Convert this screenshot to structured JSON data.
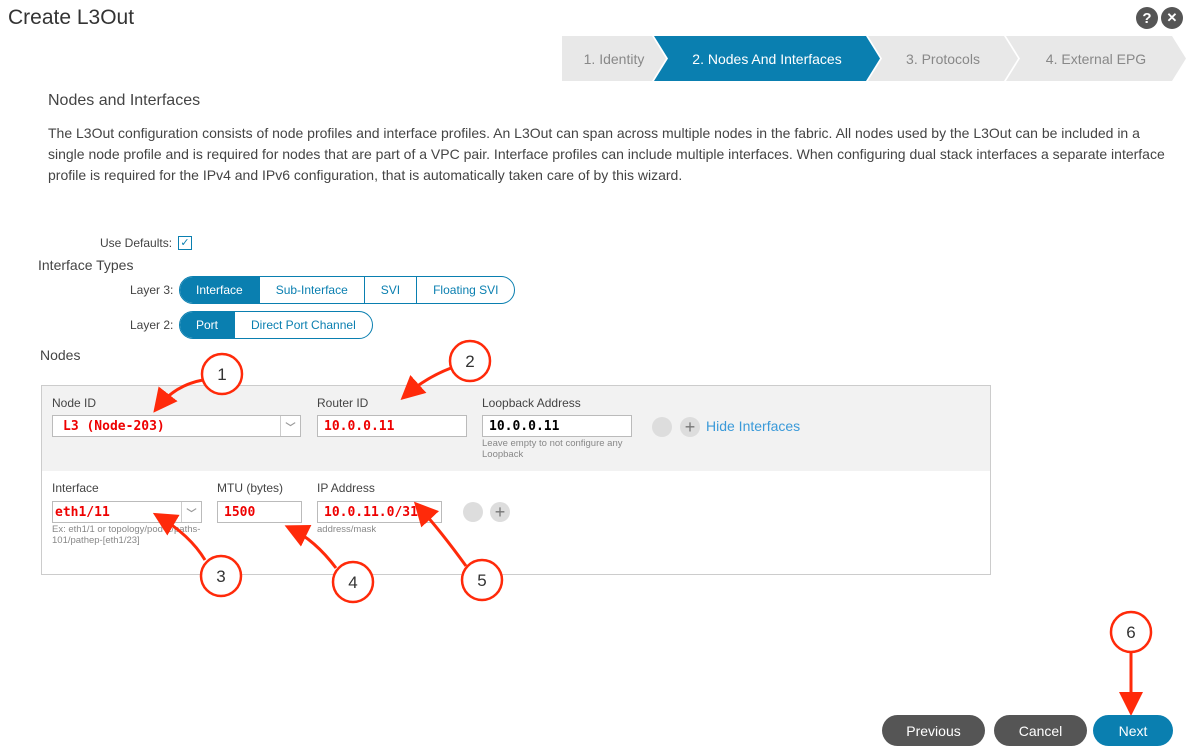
{
  "title": "Create L3Out",
  "icons": {
    "help": "?",
    "close": "✕"
  },
  "steps": [
    "1. Identity",
    "2. Nodes And Interfaces",
    "3. Protocols",
    "4. External EPG"
  ],
  "active_step": 1,
  "section_title": "Nodes and Interfaces",
  "description": "The L3Out configuration consists of node profiles and interface profiles. An L3Out can span across multiple nodes in the fabric. All nodes used by the L3Out can be included in a single node profile and is required for nodes that are part of a VPC pair. Interface profiles can include multiple interfaces. When configuring dual stack interfaces a separate interface profile is required for the IPv4 and IPv6 configuration, that is automatically taken care of by this wizard.",
  "use_defaults": {
    "label": "Use Defaults:",
    "checked": true
  },
  "interface_types": {
    "heading": "Interface Types",
    "layer3_label": "Layer 3:",
    "layer3": [
      "Interface",
      "Sub-Interface",
      "SVI",
      "Floating SVI"
    ],
    "layer3_selected": "Interface",
    "layer2_label": "Layer 2:",
    "layer2": [
      "Port",
      "Direct Port Channel"
    ],
    "layer2_selected": "Port"
  },
  "nodes": {
    "heading": "Nodes",
    "node_id_label": "Node ID",
    "node_id": "L3 (Node-203)",
    "router_id_label": "Router ID",
    "router_id": "10.0.0.11",
    "loopback_label": "Loopback Address",
    "loopback": "10.0.0.11",
    "loopback_hint": "Leave empty to not configure any Loopback",
    "hide_interfaces": "Hide Interfaces",
    "interface_label": "Interface",
    "interface": "eth1/11",
    "interface_hint": "Ex: eth1/1 or topology/pod-1/paths-101/pathep-[eth1/23]",
    "mtu_label": "MTU (bytes)",
    "mtu": "1500",
    "ip_label": "IP Address",
    "ip": "10.0.11.0/31",
    "ip_hint": "address/mask"
  },
  "annotations": [
    "1",
    "2",
    "3",
    "4",
    "5",
    "6"
  ],
  "buttons": {
    "previous": "Previous",
    "cancel": "Cancel",
    "next": "Next"
  },
  "colors": {
    "accent": "#0a7fb0",
    "annotation": "#ff2a0a",
    "button_gray": "#555555"
  }
}
